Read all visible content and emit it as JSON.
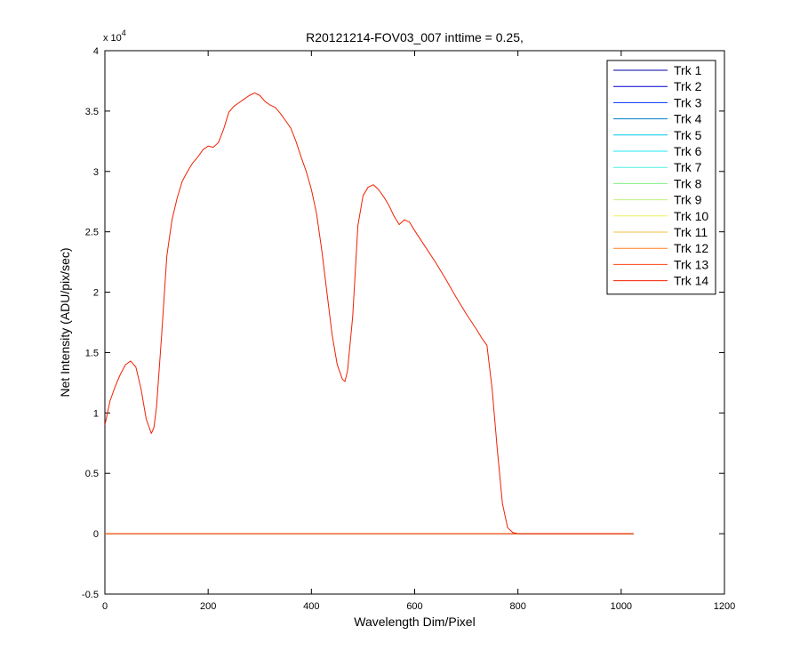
{
  "chart_data": {
    "type": "line",
    "title": "R20121214-FOV03_007 inttime = 0.25,",
    "xlabel": "Wavelength Dim/Pixel",
    "ylabel": "Net Intensity (ADU/pix/sec)",
    "xlim": [
      0,
      1200
    ],
    "ylim": [
      -0.5,
      4
    ],
    "y_scale_multiplier": "x 10",
    "y_scale_exponent": "4",
    "x_ticks": [
      0,
      200,
      400,
      600,
      800,
      1000,
      1200
    ],
    "x_tick_labels": [
      "0",
      "200",
      "400",
      "600",
      "800",
      "1000",
      "1200"
    ],
    "y_ticks": [
      -0.5,
      0,
      0.5,
      1,
      1.5,
      2,
      2.5,
      3,
      3.5,
      4
    ],
    "y_tick_labels": [
      "-0.5",
      "0",
      "0.5",
      "1",
      "1.5",
      "2",
      "2.5",
      "3",
      "3.5",
      "4"
    ],
    "grid": false,
    "legend_position": "top-right",
    "series": [
      {
        "name": "Trk 1",
        "color": "#0000a6",
        "x": [
          0,
          1024
        ],
        "values": [
          0,
          0
        ]
      },
      {
        "name": "Trk 2",
        "color": "#0000d2",
        "x": [
          0,
          1024
        ],
        "values": [
          0,
          0
        ]
      },
      {
        "name": "Trk 3",
        "color": "#0030ff",
        "x": [
          0,
          1024
        ],
        "values": [
          0,
          0
        ]
      },
      {
        "name": "Trk 4",
        "color": "#0080c8",
        "x": [
          0,
          1024
        ],
        "values": [
          0,
          0
        ]
      },
      {
        "name": "Trk 5",
        "color": "#00c8e8",
        "x": [
          0,
          1024
        ],
        "values": [
          0,
          0
        ]
      },
      {
        "name": "Trk 6",
        "color": "#20e8f0",
        "x": [
          0,
          1024
        ],
        "values": [
          0,
          0
        ]
      },
      {
        "name": "Trk 7",
        "color": "#50f0e0",
        "x": [
          0,
          1024
        ],
        "values": [
          0,
          0
        ]
      },
      {
        "name": "Trk 8",
        "color": "#80f080",
        "x": [
          0,
          1024
        ],
        "values": [
          0,
          0
        ]
      },
      {
        "name": "Trk 9",
        "color": "#c0f080",
        "x": [
          0,
          1024
        ],
        "values": [
          0,
          0
        ]
      },
      {
        "name": "Trk 10",
        "color": "#f0f060",
        "x": [
          0,
          1024
        ],
        "values": [
          0,
          0
        ]
      },
      {
        "name": "Trk 11",
        "color": "#f0c040",
        "x": [
          0,
          1024
        ],
        "values": [
          0,
          0
        ]
      },
      {
        "name": "Trk 12",
        "color": "#ff8020",
        "x": [
          0,
          1024
        ],
        "values": [
          0,
          0
        ]
      },
      {
        "name": "Trk 13",
        "color": "#ff4010",
        "x": [
          0,
          1024
        ],
        "values": [
          0,
          0
        ]
      },
      {
        "name": "Trk 14",
        "color": "#f02000",
        "x": [
          0,
          10,
          20,
          30,
          40,
          50,
          60,
          70,
          80,
          90,
          95,
          100,
          110,
          120,
          130,
          140,
          150,
          160,
          170,
          180,
          190,
          200,
          210,
          220,
          230,
          240,
          250,
          260,
          270,
          280,
          290,
          300,
          310,
          320,
          330,
          340,
          350,
          360,
          370,
          380,
          390,
          400,
          410,
          420,
          430,
          440,
          450,
          460,
          465,
          470,
          480,
          490,
          500,
          510,
          520,
          530,
          540,
          550,
          560,
          570,
          580,
          590,
          600,
          620,
          640,
          660,
          680,
          700,
          720,
          730,
          740,
          750,
          760,
          770,
          780,
          790,
          800,
          850,
          900,
          950,
          1000,
          1024
        ],
        "values": [
          0.9,
          1.1,
          1.22,
          1.32,
          1.4,
          1.43,
          1.38,
          1.2,
          0.95,
          0.83,
          0.88,
          1.05,
          1.65,
          2.3,
          2.6,
          2.78,
          2.92,
          3.0,
          3.07,
          3.12,
          3.18,
          3.21,
          3.2,
          3.24,
          3.35,
          3.49,
          3.54,
          3.57,
          3.6,
          3.63,
          3.65,
          3.63,
          3.58,
          3.55,
          3.53,
          3.48,
          3.42,
          3.36,
          3.25,
          3.12,
          3.0,
          2.85,
          2.65,
          2.35,
          2.0,
          1.65,
          1.4,
          1.28,
          1.26,
          1.35,
          1.8,
          2.55,
          2.8,
          2.87,
          2.89,
          2.85,
          2.79,
          2.72,
          2.63,
          2.56,
          2.6,
          2.58,
          2.51,
          2.38,
          2.25,
          2.11,
          1.96,
          1.82,
          1.69,
          1.62,
          1.56,
          1.2,
          0.7,
          0.25,
          0.05,
          0.01,
          0.0,
          0.0,
          0.0,
          0.0,
          0.0,
          0.0
        ]
      }
    ]
  }
}
